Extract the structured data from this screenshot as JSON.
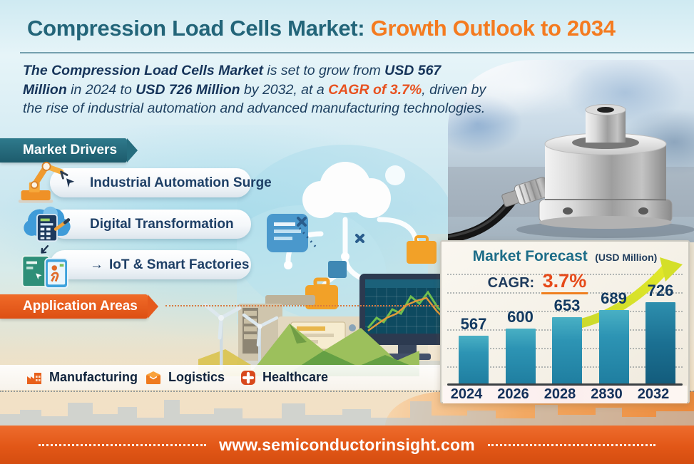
{
  "header": {
    "title_main": "Compression Load Cells Market:",
    "title_accent": " Growth Outlook to 2034"
  },
  "intro": {
    "s1": "The Compression Load Cells Market",
    "s2": " is set to grow from ",
    "s3": "USD 567 Million",
    "s4": " in 2024 to ",
    "s5": "USD 726 Million",
    "s6": " by 2032, at a ",
    "s7": "CAGR of 3.7%",
    "s8": ", driven by the rise of industrial automation and advanced manufacturing technologies."
  },
  "market_drivers": {
    "heading": "Market Drivers",
    "items": [
      {
        "label": "Industrial Automation Surge",
        "icon": "robot-arm-icon"
      },
      {
        "label": "Digital Transformation",
        "icon": "cloud-computing-icon"
      },
      {
        "label": "IoT & Smart Factories",
        "icon": "smart-factory-icon",
        "arrow": "→"
      }
    ]
  },
  "application_areas": {
    "heading": "Application Areas",
    "items": [
      {
        "label": "Manufacturing",
        "icon": "factory-icon"
      },
      {
        "label": "Logistics",
        "icon": "package-icon"
      },
      {
        "label": "Healthcare",
        "icon": "medical-cross-icon"
      }
    ]
  },
  "forecast_panel": {
    "title": "Market Forecast",
    "unit": "(USD Million)",
    "cagr_label": "CAGR:",
    "cagr_value": "3.7%"
  },
  "chart_data": {
    "type": "bar",
    "title": "Market Forecast",
    "unit": "USD Million",
    "cagr": "3.7%",
    "categories": [
      "2024",
      "2026",
      "2028",
      "2830",
      "2032"
    ],
    "values": [
      567,
      600,
      653,
      689,
      726
    ],
    "ylim": [
      500,
      750
    ],
    "grid": "dotted-horizontal",
    "legend": "none",
    "bar_color": "#2391b4",
    "last_bar_color": "#1a6e8e"
  },
  "footer": {
    "url": "www.semiconductorinsight.com"
  },
  "colors": {
    "title_teal": "#236579",
    "accent_orange": "#f47b20",
    "cagr_red": "#e8511f",
    "banner_teal": "#256e80",
    "banner_orange": "#e55d1f",
    "bar_teal": "#2391b4",
    "footer_orange": "#e0561c",
    "text_navy": "#1c3d5e"
  }
}
